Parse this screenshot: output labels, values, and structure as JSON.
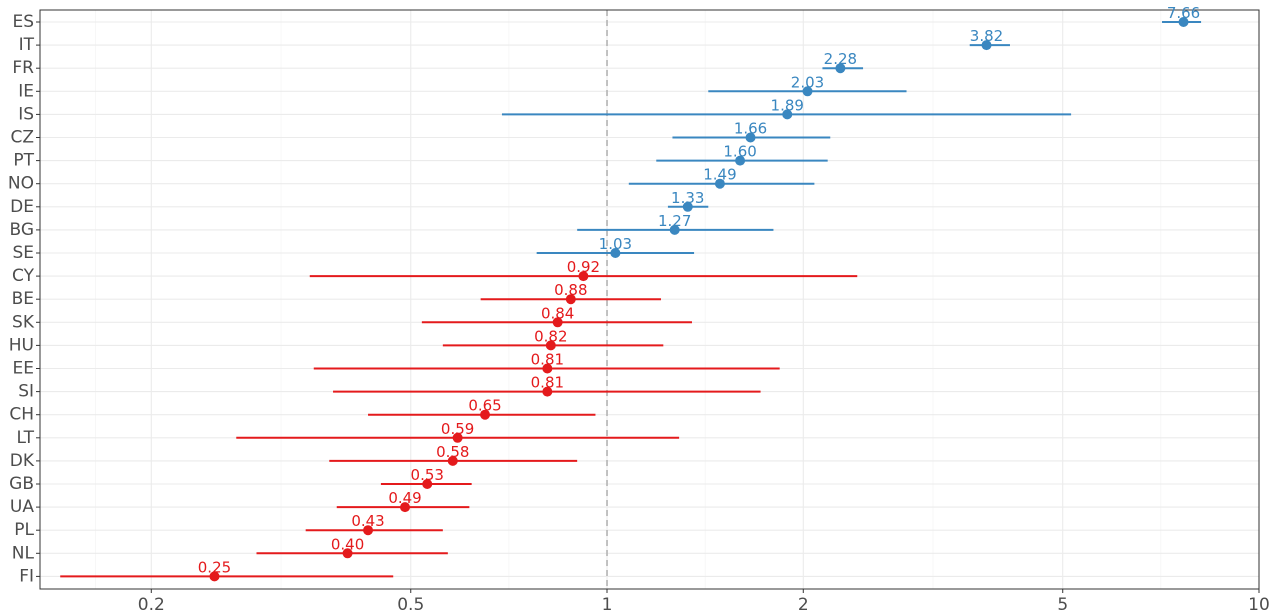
{
  "chart_data": {
    "type": "forest",
    "x_scale": "log",
    "xlim": [
      0.135,
      10
    ],
    "x_ticks": [
      0.2,
      0.5,
      1,
      2,
      5,
      10
    ],
    "x_tick_labels": [
      "0.2",
      "0.5",
      "1",
      "2",
      "5",
      "10"
    ],
    "reference_line": 1,
    "grid": true,
    "legend": "none",
    "colors": {
      "above": "#3a87c0",
      "below": "#e41a1c",
      "reference": "#b3b3b3"
    },
    "rows": [
      {
        "category": "ES",
        "estimate": 7.66,
        "lower": 7.1,
        "upper": 8.15,
        "label": "7.66"
      },
      {
        "category": "IT",
        "estimate": 3.82,
        "lower": 3.6,
        "upper": 4.15,
        "label": "3.82"
      },
      {
        "category": "FR",
        "estimate": 2.28,
        "lower": 2.14,
        "upper": 2.47,
        "label": "2.28"
      },
      {
        "category": "IE",
        "estimate": 2.03,
        "lower": 1.43,
        "upper": 2.88,
        "label": "2.03"
      },
      {
        "category": "IS",
        "estimate": 1.89,
        "lower": 0.69,
        "upper": 5.15,
        "label": "1.89"
      },
      {
        "category": "CZ",
        "estimate": 1.66,
        "lower": 1.26,
        "upper": 2.2,
        "label": "1.66"
      },
      {
        "category": "PT",
        "estimate": 1.6,
        "lower": 1.19,
        "upper": 2.18,
        "label": "1.60"
      },
      {
        "category": "NO",
        "estimate": 1.49,
        "lower": 1.08,
        "upper": 2.08,
        "label": "1.49"
      },
      {
        "category": "DE",
        "estimate": 1.33,
        "lower": 1.24,
        "upper": 1.43,
        "label": "1.33"
      },
      {
        "category": "BG",
        "estimate": 1.27,
        "lower": 0.9,
        "upper": 1.8,
        "label": "1.27"
      },
      {
        "category": "SE",
        "estimate": 1.03,
        "lower": 0.78,
        "upper": 1.36,
        "label": "1.03"
      },
      {
        "category": "CY",
        "estimate": 0.92,
        "lower": 0.35,
        "upper": 2.42,
        "label": "0.92"
      },
      {
        "category": "BE",
        "estimate": 0.88,
        "lower": 0.64,
        "upper": 1.21,
        "label": "0.88"
      },
      {
        "category": "SK",
        "estimate": 0.84,
        "lower": 0.52,
        "upper": 1.35,
        "label": "0.84"
      },
      {
        "category": "HU",
        "estimate": 0.82,
        "lower": 0.56,
        "upper": 1.22,
        "label": "0.82"
      },
      {
        "category": "EE",
        "estimate": 0.81,
        "lower": 0.355,
        "upper": 1.84,
        "label": "0.81"
      },
      {
        "category": "SI",
        "estimate": 0.81,
        "lower": 0.38,
        "upper": 1.72,
        "label": "0.81"
      },
      {
        "category": "CH",
        "estimate": 0.65,
        "lower": 0.43,
        "upper": 0.96,
        "label": "0.65"
      },
      {
        "category": "LT",
        "estimate": 0.59,
        "lower": 0.27,
        "upper": 1.29,
        "label": "0.59"
      },
      {
        "category": "DK",
        "estimate": 0.58,
        "lower": 0.375,
        "upper": 0.9,
        "label": "0.58"
      },
      {
        "category": "GB",
        "estimate": 0.53,
        "lower": 0.45,
        "upper": 0.62,
        "label": "0.53"
      },
      {
        "category": "UA",
        "estimate": 0.49,
        "lower": 0.385,
        "upper": 0.615,
        "label": "0.49"
      },
      {
        "category": "PL",
        "estimate": 0.43,
        "lower": 0.345,
        "upper": 0.56,
        "label": "0.43"
      },
      {
        "category": "NL",
        "estimate": 0.4,
        "lower": 0.29,
        "upper": 0.57,
        "label": "0.40"
      },
      {
        "category": "FI",
        "estimate": 0.25,
        "lower": 0.145,
        "upper": 0.47,
        "label": "0.25"
      }
    ]
  }
}
